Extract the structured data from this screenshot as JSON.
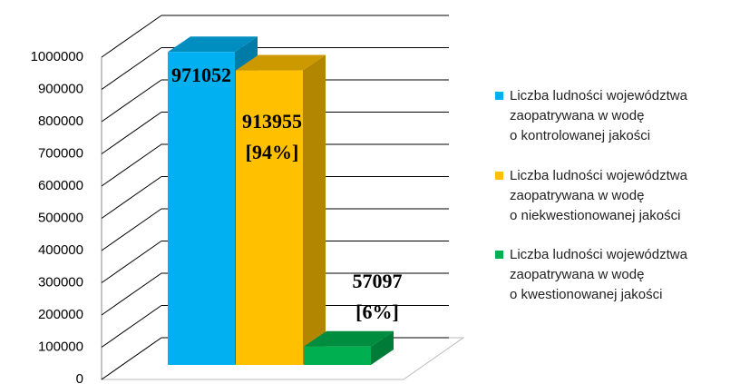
{
  "chart_data": {
    "type": "bar",
    "series": [
      {
        "name": "Liczba ludności województwa zaopatrywana w wodę o kontrolowanej jakości",
        "color": "#00b0f0",
        "values": [
          971052
        ],
        "value_labels": [
          "971052"
        ]
      },
      {
        "name": "Liczba ludności województwa zaopatrywana w wodę o niekwestionowanej jakości",
        "color": "#ffc000",
        "values": [
          913955
        ],
        "value_labels": [
          "913955 [94%]"
        ]
      },
      {
        "name": "Liczba ludności województwa zaopatrywana w wodę o kwestionowanej jakości",
        "color": "#00b050",
        "values": [
          57097
        ],
        "value_labels": [
          "57097 [6%]"
        ]
      }
    ],
    "ylim": [
      0,
      1000000
    ],
    "yticks": [
      0,
      100000,
      200000,
      300000,
      400000,
      500000,
      600000,
      700000,
      800000,
      900000,
      1000000
    ],
    "grid": true
  }
}
